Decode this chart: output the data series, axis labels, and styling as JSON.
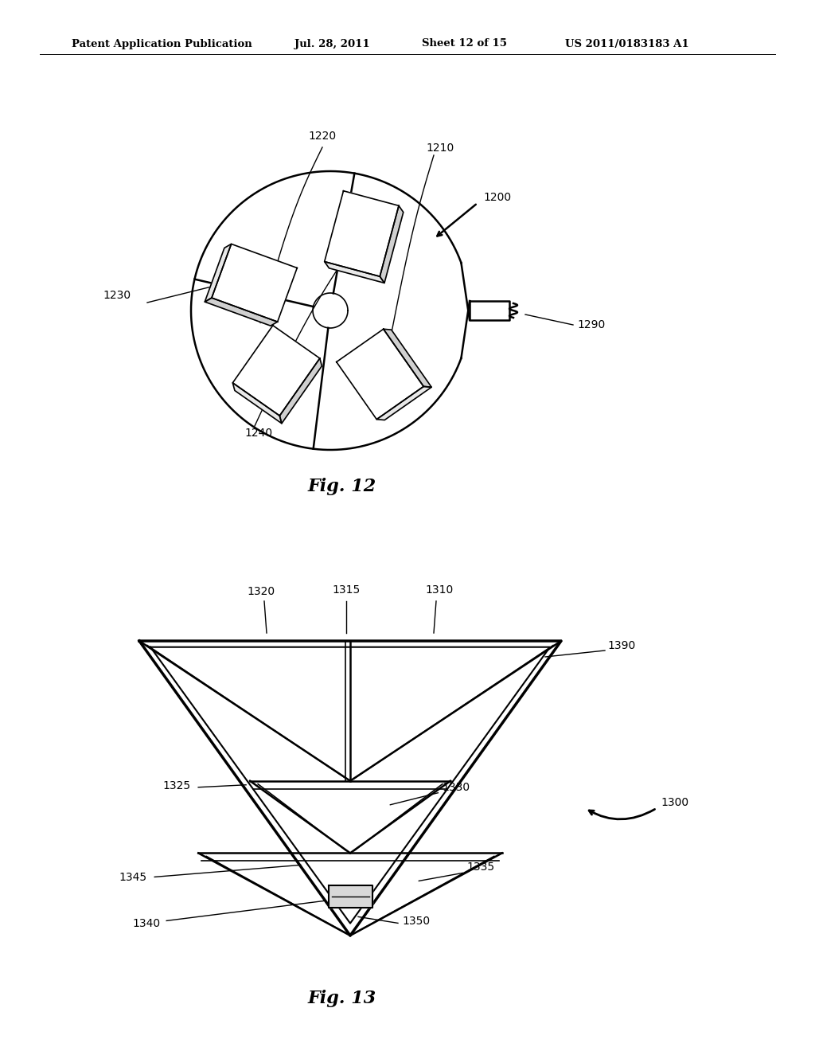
{
  "bg_color": "#ffffff",
  "line_color": "#000000",
  "header_text": "Patent Application Publication",
  "header_date": "Jul. 28, 2011",
  "header_sheet": "Sheet 12 of 15",
  "header_patent": "US 2011/0183183 A1",
  "fig12_caption": "Fig. 12",
  "fig13_caption": "Fig. 13"
}
